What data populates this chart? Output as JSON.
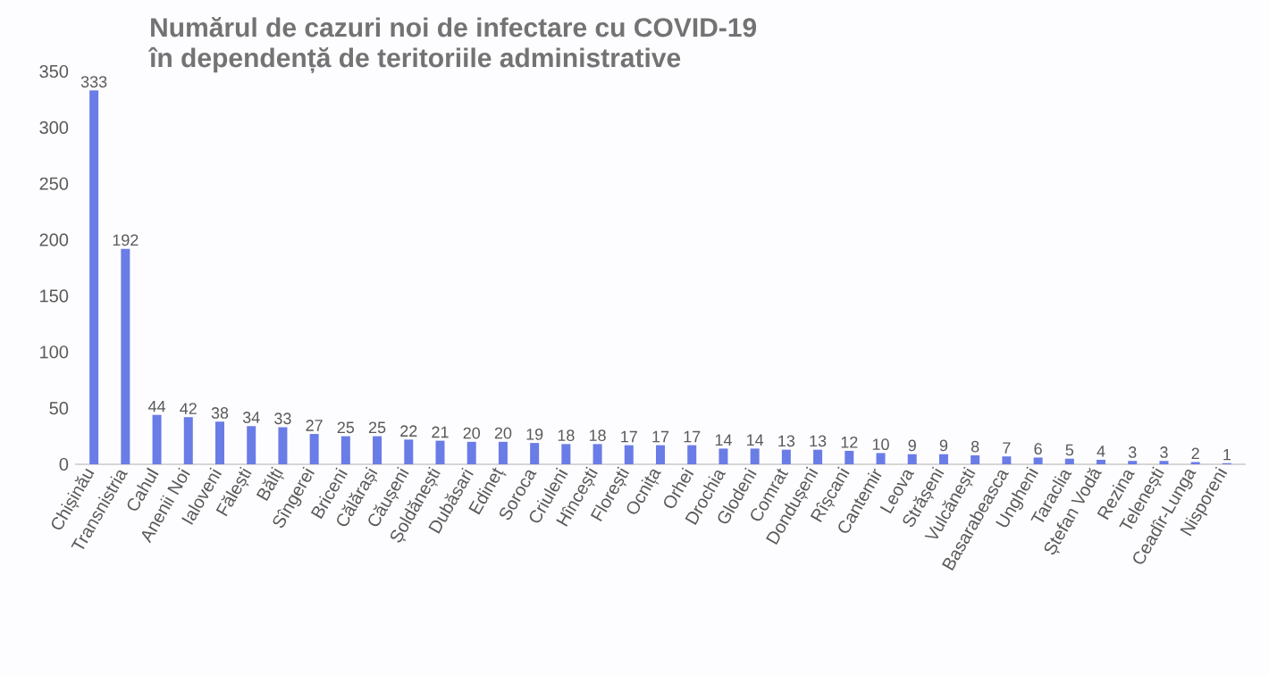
{
  "chart_data": {
    "type": "bar",
    "title": "Numărul de cazuri noi de infectare cu COVID-19",
    "subtitle": "în dependență de teritoriile administrative",
    "categories": [
      "Chișinău",
      "Transnistria",
      "Cahul",
      "Anenii Noi",
      "Ialoveni",
      "Fălești",
      "Bălți",
      "Sîngerei",
      "Briceni",
      "Călărași",
      "Căușeni",
      "Șoldănești",
      "Dubăsari",
      "Edineț",
      "Soroca",
      "Criuleni",
      "Hîncești",
      "Florești",
      "Ocnița",
      "Orhei",
      "Drochia",
      "Glodeni",
      "Comrat",
      "Dondușeni",
      "Rîșcani",
      "Cantemir",
      "Leova",
      "Strășeni",
      "Vulcănești",
      "Basarabeasca",
      "Ungheni",
      "Taraclia",
      "Ștefan Vodă",
      "Rezina",
      "Telenești",
      "Ceadîr-Lunga",
      "Nisporeni"
    ],
    "values": [
      333,
      192,
      44,
      42,
      38,
      34,
      33,
      27,
      25,
      25,
      22,
      21,
      20,
      20,
      19,
      18,
      18,
      17,
      17,
      17,
      14,
      14,
      13,
      13,
      12,
      10,
      9,
      9,
      8,
      7,
      6,
      5,
      4,
      3,
      3,
      2,
      1
    ],
    "color": "#6a7ce6",
    "data_labels": true,
    "ylim": [
      0,
      350
    ],
    "yticks": [
      0,
      50,
      100,
      150,
      200,
      250,
      300,
      350
    ]
  }
}
